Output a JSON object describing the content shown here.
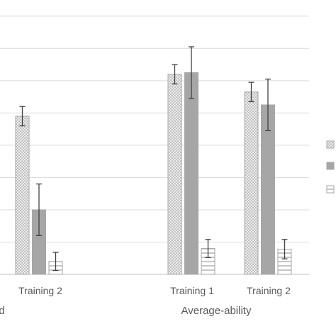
{
  "chart_data": {
    "type": "bar",
    "title": "",
    "xlabel": "",
    "ylabel": "",
    "ylim": [
      0,
      8.5
    ],
    "grid": true,
    "legend_placement": "right",
    "group_labels": [
      "ed",
      "Average-ability"
    ],
    "categories": [
      "Training 2",
      "Training 1",
      "Training 2"
    ],
    "category_group": [
      0,
      1,
      1
    ],
    "series": [
      {
        "pattern": "dots",
        "color": "#d9d9d9",
        "values": [
          4.9,
          6.2,
          5.65
        ],
        "err": [
          0.3,
          0.3,
          0.3
        ]
      },
      {
        "pattern": "solid",
        "color": "#a6a6a6",
        "values": [
          2.0,
          6.25,
          5.25
        ],
        "err": [
          0.8,
          0.8,
          0.8
        ]
      },
      {
        "pattern": "horizontal",
        "color": "#ffffff",
        "values": [
          0.4,
          0.8,
          0.78
        ],
        "err": [
          0.28,
          0.28,
          0.3
        ]
      }
    ]
  }
}
